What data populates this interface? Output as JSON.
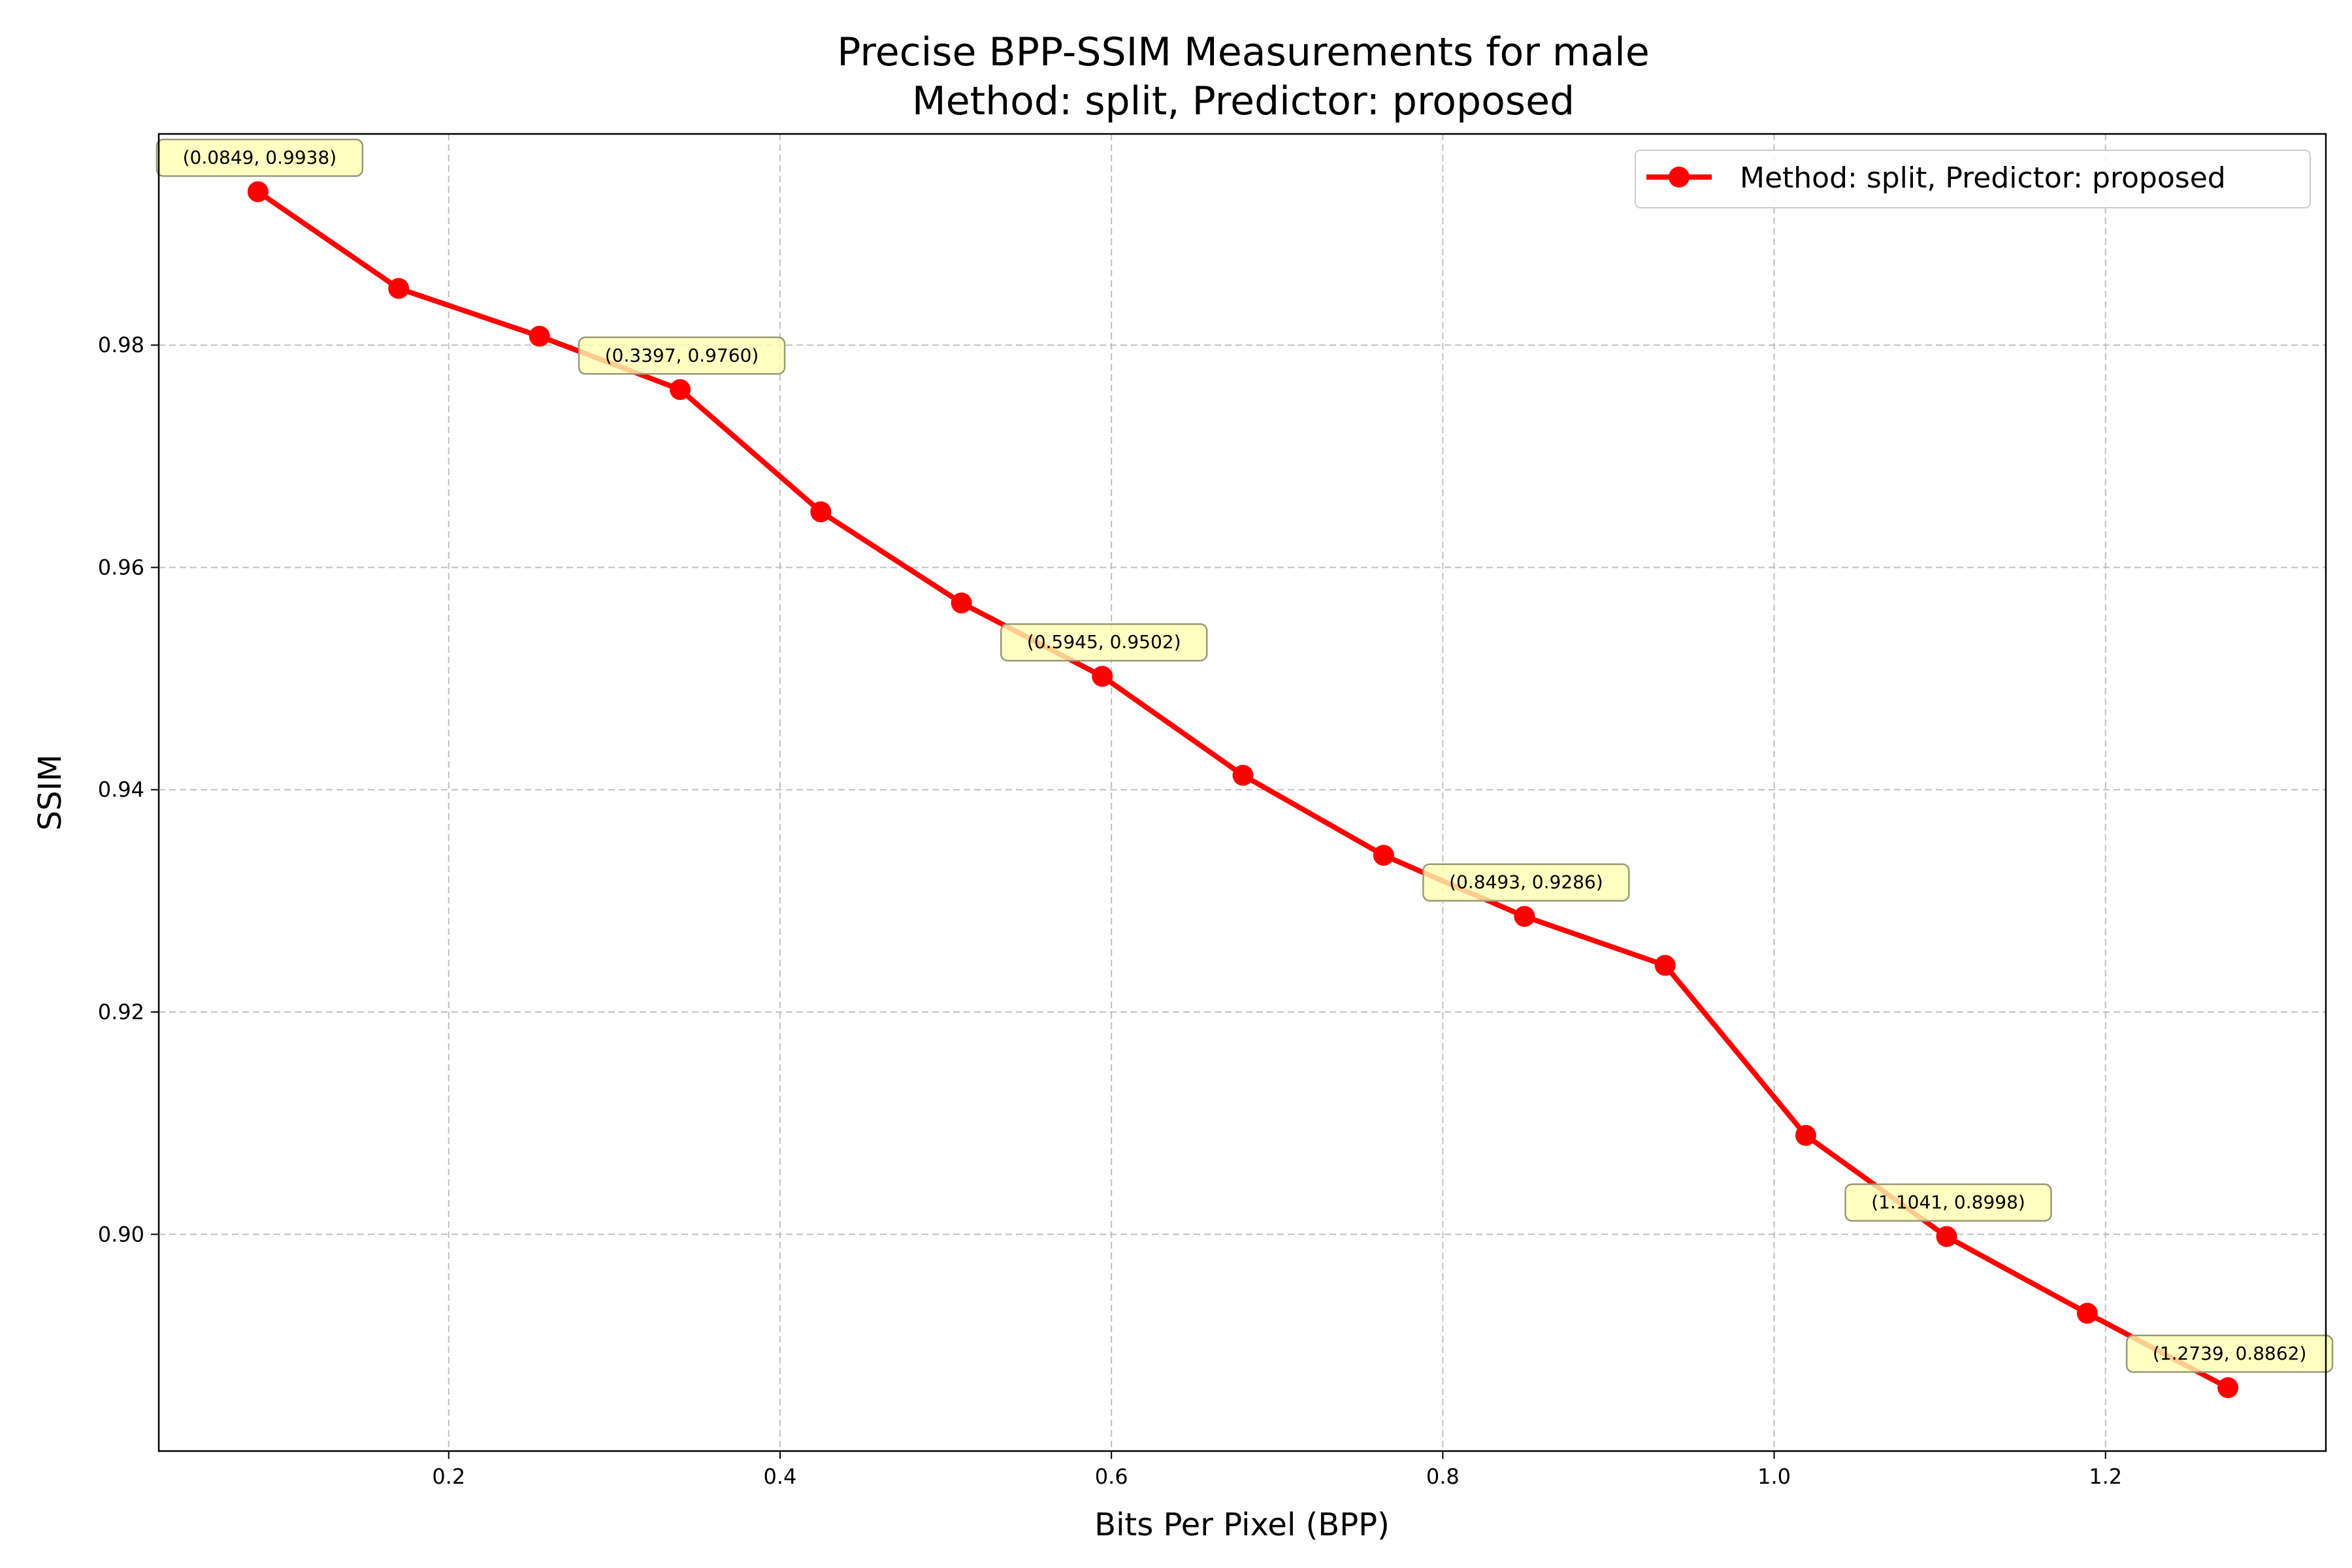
{
  "chart_data": {
    "type": "line",
    "title": "Precise BPP-SSIM Measurements for male",
    "subtitle": "Method: split, Predictor: proposed",
    "xlabel": "Bits Per Pixel (BPP)",
    "ylabel": "SSIM",
    "xlim": [
      0.025,
      1.333
    ],
    "ylim": [
      0.8805,
      0.999
    ],
    "xticks": [
      0.2,
      0.4,
      0.6,
      0.8,
      1.0,
      1.2
    ],
    "xtick_labels": [
      "0.2",
      "0.4",
      "0.6",
      "0.8",
      "1.0",
      "1.2"
    ],
    "yticks": [
      0.9,
      0.92,
      0.94,
      0.96,
      0.98
    ],
    "ytick_labels": [
      "0.90",
      "0.92",
      "0.94",
      "0.96",
      "0.98"
    ],
    "grid": true,
    "legend_position": "top-right",
    "series": [
      {
        "name": "Method: split, Predictor: proposed",
        "color": "#ff0000",
        "x": [
          0.0849,
          0.1698,
          0.2548,
          0.3397,
          0.4246,
          0.5095,
          0.5945,
          0.6794,
          0.7643,
          0.8493,
          0.9342,
          1.0191,
          1.1041,
          1.189,
          1.2739
        ],
        "y": [
          0.9938,
          0.9851,
          0.9808,
          0.976,
          0.965,
          0.9568,
          0.9502,
          0.9413,
          0.9341,
          0.9286,
          0.9242,
          0.9089,
          0.8998,
          0.8929,
          0.8862
        ]
      }
    ],
    "annotations": [
      {
        "x": 0.0849,
        "y": 0.9938,
        "text": "(0.0849, 0.9938)"
      },
      {
        "x": 0.3397,
        "y": 0.976,
        "text": "(0.3397, 0.9760)"
      },
      {
        "x": 0.5945,
        "y": 0.9502,
        "text": "(0.5945, 0.9502)"
      },
      {
        "x": 0.8493,
        "y": 0.9286,
        "text": "(0.8493, 0.9286)"
      },
      {
        "x": 1.1041,
        "y": 0.8998,
        "text": "(1.1041, 0.8998)"
      },
      {
        "x": 1.2739,
        "y": 0.8862,
        "text": "(1.2739, 0.8862)"
      }
    ],
    "annotation_color": "#ffffb3"
  }
}
